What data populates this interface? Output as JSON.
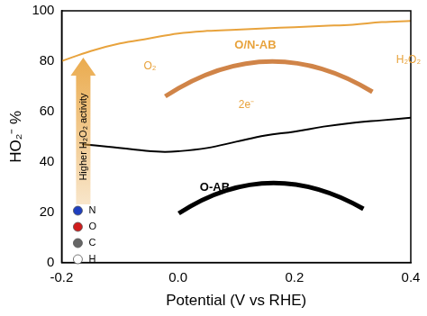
{
  "chart_data": {
    "type": "line",
    "x_label": "Potential (V vs RHE)",
    "y_label": "HO₂⁻ %",
    "xlim": [
      -0.2,
      0.4
    ],
    "xticks": [
      {
        "value": -0.2,
        "label": "-0.2"
      },
      {
        "value": 0,
        "label": "0.0"
      },
      {
        "value": 0.2,
        "label": "0.2"
      },
      {
        "value": 0.4,
        "label": "0.4"
      }
    ],
    "ylim": [
      0,
      100
    ],
    "yticks": [
      0,
      20,
      40,
      60,
      80,
      100
    ],
    "grid": false,
    "series": [
      {
        "name": "O/N-AB",
        "color": "#e8a33d",
        "x": [
          -0.2,
          -0.15,
          -0.1,
          -0.05,
          0,
          0.05,
          0.1,
          0.15,
          0.2,
          0.25,
          0.3,
          0.35,
          0.4
        ],
        "values": [
          80,
          84,
          87,
          89,
          91,
          92,
          92.5,
          93,
          93.5,
          94,
          94.5,
          95.5,
          96
        ]
      },
      {
        "name": "O-AB",
        "color": "#000000",
        "x": [
          -0.165,
          -0.12,
          -0.08,
          -0.03,
          0,
          0.05,
          0.1,
          0.15,
          0.2,
          0.25,
          0.3,
          0.35,
          0.4
        ],
        "values": [
          47,
          46,
          45,
          44,
          44.2,
          45.5,
          48,
          50.5,
          52,
          54,
          55.5,
          56.5,
          57.5
        ]
      }
    ],
    "annotations": [
      "Higher H₂O₂ activity",
      "O₂",
      "H₂O₂",
      "2e⁻"
    ],
    "atom_key": [
      {
        "label": "N",
        "color": "#1f3fbf"
      },
      {
        "label": "O",
        "color": "#d01c1c"
      },
      {
        "label": "C",
        "color": "#666666"
      },
      {
        "label": "H",
        "color": "#ffffff"
      }
    ]
  }
}
